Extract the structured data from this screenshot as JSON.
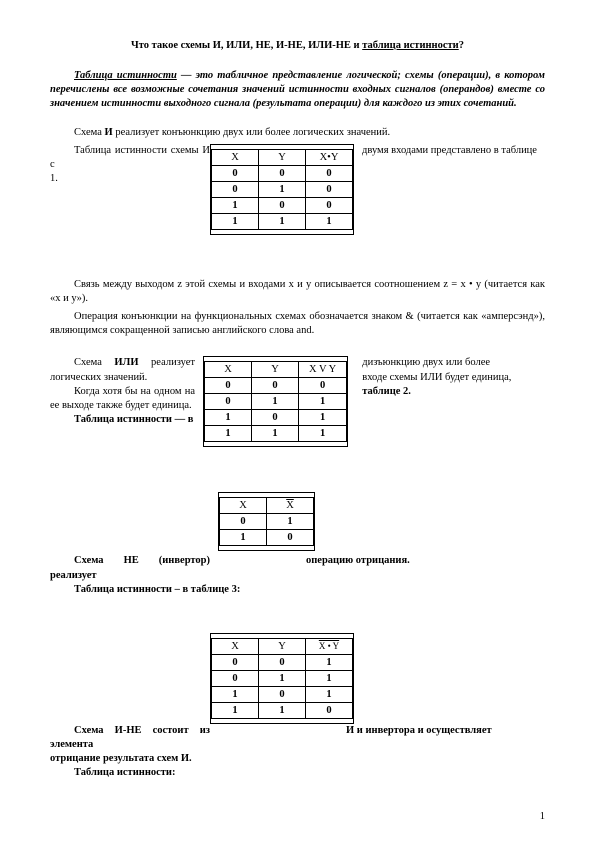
{
  "title_prefix": "Что такое схемы И, ИЛИ, НЕ, И-НЕ, ИЛИ-НЕ и ",
  "title_underlined": "таблица истинности",
  "title_suffix": "?",
  "definition_term": "Таблица истинности",
  "definition_rest": " — это табличное представление логической; схемы (операции), в котором перечислены все возможные сочетания значений истинности входных сигналов (операндов) вместе со значением истинности выходного сигнала (результата операции) для каждого из этих сочетаний.",
  "and_text1": "Схема ",
  "and_text1_bold": "И",
  "and_text1_rest": " реализует конъюнкцию двух или более логических значений.",
  "and_text2_left": "Таблица истинности схемы И с",
  "and_text2_right": "двумя входами представлено в таблице",
  "and_text2_num": "1.",
  "and_table": {
    "headers": [
      "X",
      "Y",
      "X•Y"
    ],
    "rows": [
      [
        "0",
        "0",
        "0"
      ],
      [
        "0",
        "1",
        "0"
      ],
      [
        "1",
        "0",
        "0"
      ],
      [
        "1",
        "1",
        "1"
      ]
    ]
  },
  "and_rel": "Связь между выходом z этой схемы и входами x и y описывается соотношением z = x • y   (читается как «x и y»).",
  "and_amp": "Операция конъюнкции на функциональных схемах обозначается знаком & (читается как «амперсэнд»), являющимся сокращенной записью английского слова and.",
  "or_left1_a": "Схема ",
  "or_left1_b": "ИЛИ",
  "or_left1_c": " реализует логических значений.",
  "or_right1": "дизъюнкцию двух или более",
  "or_left2": "Когда хотя бы на одном на ее выходе также будет единица.",
  "or_right2": "входе схемы ИЛИ будет единица,",
  "or_left3": "Таблица истинности — в",
  "or_right3": "таблице 2.",
  "or_table": {
    "headers": [
      "X",
      "Y",
      "X V Y"
    ],
    "rows": [
      [
        "0",
        "0",
        "0"
      ],
      [
        "0",
        "1",
        "1"
      ],
      [
        "1",
        "0",
        "1"
      ],
      [
        "1",
        "1",
        "1"
      ]
    ]
  },
  "not_table": {
    "hx": "X",
    "hxbar": "X",
    "rows": [
      [
        "0",
        "1"
      ],
      [
        "1",
        "0"
      ]
    ]
  },
  "not_left": "Схема НЕ (инвертор) реализует",
  "not_right": "операцию отрицания.",
  "not_tab": "Таблица истинности – в таблице 3:",
  "nand_table": {
    "h": [
      "X",
      "Y"
    ],
    "hxy": "X • Y",
    "rows": [
      [
        "0",
        "0",
        "1"
      ],
      [
        "0",
        "1",
        "1"
      ],
      [
        "1",
        "0",
        "1"
      ],
      [
        "1",
        "1",
        "0"
      ]
    ]
  },
  "nand_left": "Схема И-НЕ состоит из элемента",
  "nand_right": "И и инвертора и осуществляет",
  "nand_line2": "отрицание результата схем И.",
  "nand_tab": "Таблица истинности:",
  "page_number": "1"
}
